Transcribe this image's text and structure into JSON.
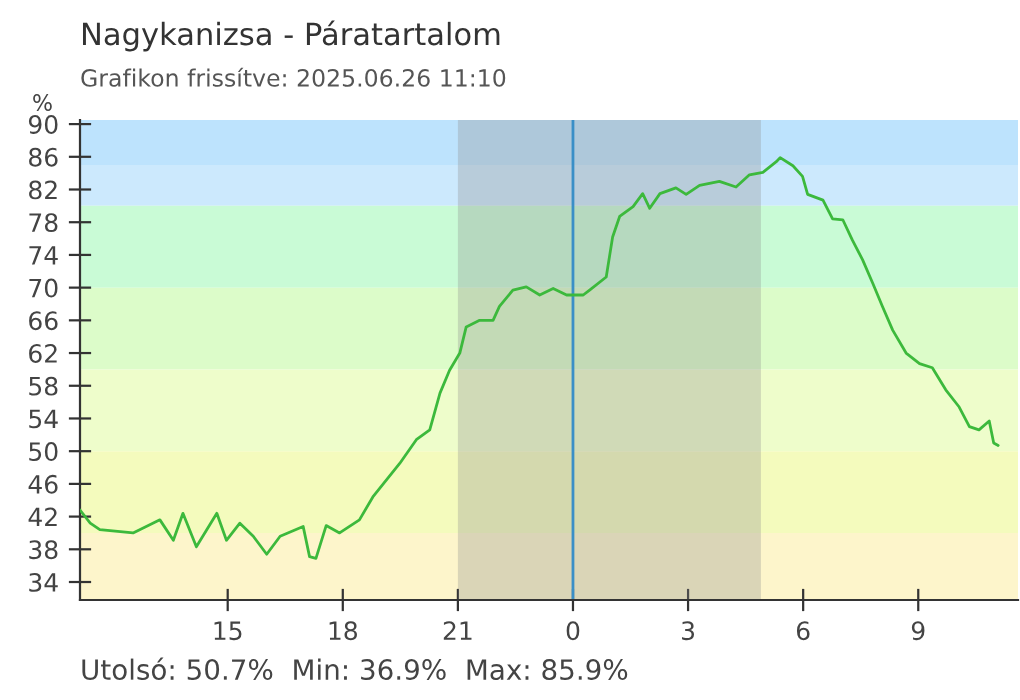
{
  "chart_data": {
    "type": "line",
    "title": "Nagykanizsa - Páratartalom",
    "subtitle": "Grafikon frissítve: 2025.06.26 11:10",
    "ylabel": "%",
    "annotations": [
      "Utolsó: 50.7%  Min: 36.9%  Max: 85.9%"
    ],
    "x": [
      "2025-06-25T11:09",
      "2025-06-25T11:25",
      "2025-06-25T11:40",
      "2025-06-25T12:32",
      "2025-06-25T13:14",
      "2025-06-25T13:35",
      "2025-06-25T13:50",
      "2025-06-25T14:11",
      "2025-06-25T14:43",
      "2025-06-25T14:58",
      "2025-06-25T15:19",
      "2025-06-25T15:40",
      "2025-06-25T16:01",
      "2025-06-25T16:22",
      "2025-06-25T16:58",
      "2025-06-25T17:08",
      "2025-06-25T17:18",
      "2025-06-25T17:34",
      "2025-06-25T17:55",
      "2025-06-25T18:26",
      "2025-06-25T18:47",
      "2025-06-25T19:29",
      "2025-06-25T19:55",
      "2025-06-25T20:16",
      "2025-06-25T20:32",
      "2025-06-25T20:47",
      "2025-06-25T21:03",
      "2025-06-25T21:13",
      "2025-06-25T21:34",
      "2025-06-25T21:55",
      "2025-06-25T22:05",
      "2025-06-25T22:26",
      "2025-06-25T22:47",
      "2025-06-25T23:08",
      "2025-06-25T23:29",
      "2025-06-25T23:50",
      "2025-06-26T00:16",
      "2025-06-26T00:26",
      "2025-06-26T00:52",
      "2025-06-26T01:02",
      "2025-06-26T01:13",
      "2025-06-26T01:34",
      "2025-06-26T01:49",
      "2025-06-26T02:00",
      "2025-06-26T02:16",
      "2025-06-26T02:41",
      "2025-06-26T02:57",
      "2025-06-26T03:18",
      "2025-06-26T03:49",
      "2025-06-26T04:15",
      "2025-06-26T04:36",
      "2025-06-26T04:57",
      "2025-06-26T05:18",
      "2025-06-26T05:24",
      "2025-06-26T05:44",
      "2025-06-26T05:59",
      "2025-06-26T06:07",
      "2025-06-26T06:31",
      "2025-06-26T06:46",
      "2025-06-26T07:02",
      "2025-06-26T07:17",
      "2025-06-26T07:33",
      "2025-06-26T07:49",
      "2025-06-26T08:04",
      "2025-06-26T08:20",
      "2025-06-26T08:41",
      "2025-06-26T09:02",
      "2025-06-26T09:22",
      "2025-06-26T09:43",
      "2025-06-26T10:04",
      "2025-06-26T10:20",
      "2025-06-26T10:35",
      "2025-06-26T10:51",
      "2025-06-26T10:58",
      "2025-06-26T11:05"
    ],
    "series": [
      {
        "color": "#3cb93c",
        "values": [
          42.8,
          41.2,
          40.4,
          40.0,
          41.6,
          39.1,
          42.4,
          38.3,
          42.4,
          39.1,
          41.2,
          39.6,
          37.4,
          39.6,
          40.8,
          37.1,
          36.9,
          40.9,
          40.0,
          41.6,
          44.4,
          48.5,
          51.4,
          52.6,
          57.1,
          59.9,
          62.0,
          65.2,
          66.0,
          66.0,
          67.7,
          69.7,
          70.1,
          69.1,
          69.9,
          69.1,
          69.1,
          69.7,
          71.3,
          76.2,
          78.7,
          79.9,
          81.5,
          79.7,
          81.5,
          82.2,
          81.4,
          82.5,
          83.0,
          82.3,
          83.8,
          84.1,
          85.4,
          85.9,
          84.9,
          83.6,
          81.4,
          80.7,
          78.4,
          78.3,
          75.8,
          73.4,
          70.5,
          67.7,
          64.8,
          62.0,
          60.7,
          60.2,
          57.5,
          55.4,
          53.0,
          52.6,
          53.7,
          51.0,
          50.7
        ]
      }
    ],
    "xlim": [
      "2025-06-25T11:09",
      "2025-06-26T11:36"
    ],
    "ylim": [
      31.8,
      90.5
    ],
    "xticks": [
      {
        "value": "2025-06-25T15:00",
        "label": "15"
      },
      {
        "value": "2025-06-25T18:00",
        "label": "18"
      },
      {
        "value": "2025-06-25T21:00",
        "label": "21"
      },
      {
        "value": "2025-06-26T00:00",
        "label": "0"
      },
      {
        "value": "2025-06-26T03:00",
        "label": "3"
      },
      {
        "value": "2025-06-26T06:00",
        "label": "6"
      },
      {
        "value": "2025-06-26T09:00",
        "label": "9"
      }
    ],
    "yticks": [
      34,
      38,
      42,
      46,
      50,
      54,
      58,
      62,
      66,
      70,
      74,
      78,
      82,
      86,
      90
    ],
    "bands": [
      {
        "axis": "y",
        "from": 85,
        "to": 90.5,
        "color": "#bde3fd"
      },
      {
        "axis": "y",
        "from": 80,
        "to": 85,
        "color": "#cce9fd"
      },
      {
        "axis": "y",
        "from": 70,
        "to": 80,
        "color": "#c9fbd6"
      },
      {
        "axis": "y",
        "from": 60,
        "to": 70,
        "color": "#dcfcc9"
      },
      {
        "axis": "y",
        "from": 50,
        "to": 60,
        "color": "#eefdcb"
      },
      {
        "axis": "y",
        "from": 40,
        "to": 50,
        "color": "#f4fbbd"
      },
      {
        "axis": "y",
        "from": 31.8,
        "to": 40,
        "color": "#fdf5cb"
      },
      {
        "axis": "x",
        "from": "2025-06-25T21:00",
        "to": "2025-06-26T04:54",
        "color": "#8a8a8a"
      }
    ],
    "ref_lines": [
      {
        "axis": "x",
        "value": "2025-06-26T00:00",
        "color": "#3a8fc7"
      }
    ],
    "grid": false
  }
}
